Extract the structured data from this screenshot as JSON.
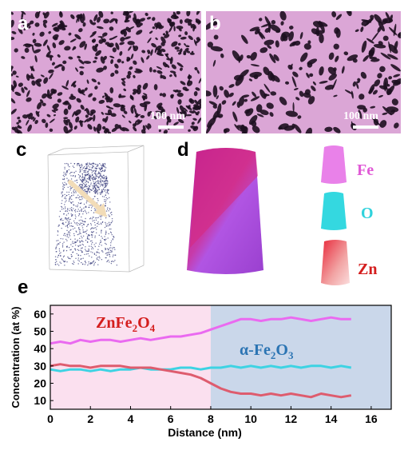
{
  "panels": {
    "a": {
      "letter": "a",
      "scale_label": "100 nm"
    },
    "b": {
      "letter": "b",
      "scale_label": "100 nm"
    },
    "c": {
      "letter": "c"
    },
    "d": {
      "letter": "d"
    },
    "e": {
      "letter": "e"
    }
  },
  "elements": [
    {
      "label": "Fe",
      "color": "#e05ad6"
    },
    {
      "label": "O",
      "color": "#2fd2dc"
    },
    {
      "label": "Zn",
      "color": "#d41e1e"
    }
  ],
  "colors": {
    "sem_bg": "#dba6d6",
    "sem_pores": "#1d1020",
    "region_left": "#fbe0ef",
    "region_right": "#cad7ea",
    "fe_line": "#ea6af0",
    "o_line": "#3dd3e3",
    "zn_line": "#de5c6e",
    "label_zn": "#d41e1e",
    "label_fe2o3": "#2b74b3",
    "tomo_points": "#2b2f74"
  },
  "chart_data": {
    "type": "line",
    "xlabel": "Distance (nm)",
    "ylabel": "Concentration (at %)",
    "xlim": [
      0,
      17
    ],
    "ylim": [
      5,
      65
    ],
    "xticks": [
      0,
      2,
      4,
      6,
      8,
      10,
      12,
      14,
      16
    ],
    "yticks": [
      10,
      20,
      30,
      40,
      50,
      60
    ],
    "regions": [
      {
        "label_main": "ZnFe",
        "sub1": "2",
        "mid": "O",
        "sub2": "4",
        "x_range": [
          0,
          8
        ]
      },
      {
        "label_main": "α-Fe",
        "sub1": "2",
        "mid": "O",
        "sub2": "3",
        "x_range": [
          8,
          17
        ]
      }
    ],
    "x": [
      0,
      0.5,
      1,
      1.5,
      2,
      2.5,
      3,
      3.5,
      4,
      4.5,
      5,
      5.5,
      6,
      6.5,
      7,
      7.5,
      8,
      8.5,
      9,
      9.5,
      10,
      10.5,
      11,
      11.5,
      12,
      12.5,
      13,
      13.5,
      14,
      14.5,
      15
    ],
    "series": [
      {
        "key": "Fe",
        "color": "#ea6af0",
        "values": [
          43,
          44,
          43,
          45,
          44,
          45,
          45,
          44,
          45,
          46,
          45,
          46,
          47,
          47,
          48,
          49,
          51,
          53,
          55,
          57,
          57,
          56,
          57,
          57,
          58,
          57,
          56,
          57,
          58,
          57,
          57
        ]
      },
      {
        "key": "O",
        "color": "#3dd3e3",
        "values": [
          28,
          27,
          28,
          28,
          27,
          28,
          27,
          28,
          28,
          29,
          28,
          28,
          28,
          29,
          29,
          28,
          29,
          29,
          30,
          29,
          30,
          29,
          30,
          29,
          30,
          29,
          30,
          30,
          29,
          30,
          29
        ]
      },
      {
        "key": "Zn",
        "color": "#de5c6e",
        "values": [
          30,
          31,
          30,
          30,
          29,
          30,
          30,
          30,
          29,
          29,
          29,
          28,
          27,
          26,
          25,
          23,
          20,
          17,
          15,
          14,
          14,
          13,
          14,
          13,
          14,
          13,
          12,
          14,
          13,
          12,
          13
        ]
      }
    ]
  }
}
